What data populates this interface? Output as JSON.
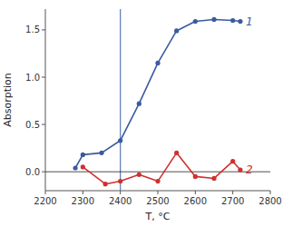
{
  "chart_data": {
    "type": "line",
    "xlabel": "T, °C",
    "ylabel": "Absorption",
    "series": [
      {
        "name": "1",
        "color": "#3a5ba0",
        "marker": "circle",
        "x": [
          2280,
          2300,
          2350,
          2400,
          2450,
          2500,
          2550,
          2600,
          2650,
          2700,
          2720
        ],
        "values": [
          0.04,
          0.18,
          0.2,
          0.33,
          0.72,
          1.15,
          1.49,
          1.59,
          1.61,
          1.6,
          1.59
        ]
      },
      {
        "name": "2",
        "color": "#d03030",
        "marker": "circle",
        "x": [
          2300,
          2360,
          2400,
          2450,
          2500,
          2550,
          2600,
          2650,
          2700,
          2720
        ],
        "values": [
          0.05,
          -0.13,
          -0.1,
          -0.03,
          -0.1,
          0.2,
          -0.05,
          -0.07,
          0.11,
          0.02
        ]
      }
    ],
    "reference_lines": [
      {
        "axis": "x",
        "value": 2400,
        "color": "#6680bb"
      },
      {
        "axis": "y",
        "value": 0,
        "color": "#000000"
      }
    ],
    "xlim": [
      2200,
      2800
    ],
    "ylim": [
      -0.2,
      1.72
    ],
    "xticks": [
      2200,
      2300,
      2400,
      2500,
      2600,
      2700,
      2800
    ],
    "yticks": [
      {
        "value": 0.0,
        "label": "0.0"
      },
      0.5,
      {
        "value": 1.0,
        "label": "1.0"
      },
      1.5
    ]
  }
}
